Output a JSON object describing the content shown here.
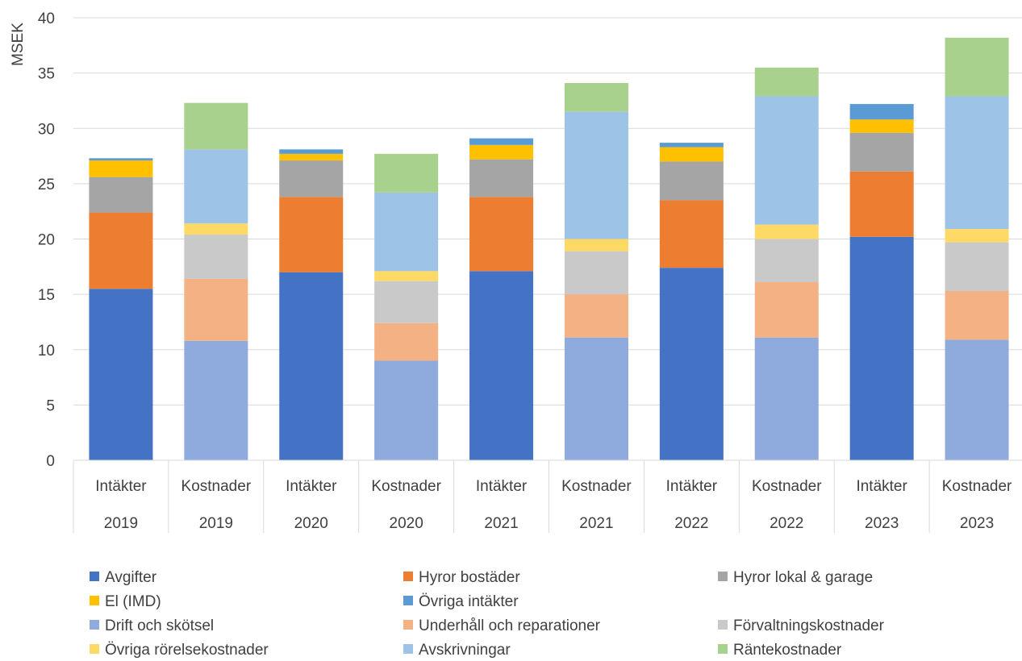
{
  "chart_data": {
    "type": "bar",
    "stacked": true,
    "ylabel": "MSEK",
    "ylim": [
      0,
      40
    ],
    "yticks": [
      0,
      5,
      10,
      15,
      20,
      25,
      30,
      35,
      40
    ],
    "grid": true,
    "legend_position": "bottom",
    "categories": [
      {
        "group": "Intäkter",
        "year": "2019"
      },
      {
        "group": "Kostnader",
        "year": "2019"
      },
      {
        "group": "Intäkter",
        "year": "2020"
      },
      {
        "group": "Kostnader",
        "year": "2020"
      },
      {
        "group": "Intäkter",
        "year": "2021"
      },
      {
        "group": "Kostnader",
        "year": "2021"
      },
      {
        "group": "Intäkter",
        "year": "2022"
      },
      {
        "group": "Kostnader",
        "year": "2022"
      },
      {
        "group": "Intäkter",
        "year": "2023"
      },
      {
        "group": "Kostnader",
        "year": "2023"
      }
    ],
    "series": [
      {
        "name": "Avgifter",
        "color": "#4472C4",
        "values": [
          15.5,
          0,
          17.0,
          0,
          17.1,
          0,
          17.4,
          0,
          20.2,
          0
        ]
      },
      {
        "name": "Hyror bostäder",
        "color": "#ED7D31",
        "values": [
          6.9,
          0,
          6.8,
          0,
          6.7,
          0,
          6.1,
          0,
          5.9,
          0
        ]
      },
      {
        "name": "Hyror lokal & garage",
        "color": "#A5A5A5",
        "values": [
          3.2,
          0,
          3.3,
          0,
          3.4,
          0,
          3.5,
          0,
          3.5,
          0
        ]
      },
      {
        "name": "El (IMD)",
        "color": "#FFC000",
        "values": [
          1.5,
          0,
          0.6,
          0,
          1.3,
          0,
          1.3,
          0,
          1.2,
          0
        ]
      },
      {
        "name": "Övriga intäkter",
        "color": "#5B9BD5",
        "values": [
          0.2,
          0,
          0.4,
          0,
          0.6,
          0,
          0.4,
          0,
          1.4,
          0
        ]
      },
      {
        "name": "Drift och skötsel",
        "color": "#8FAADC",
        "values": [
          0,
          10.8,
          0,
          9.0,
          0,
          11.1,
          0,
          11.1,
          0,
          10.9
        ]
      },
      {
        "name": "Underhåll och reparationer",
        "color": "#F4B183",
        "values": [
          0,
          5.6,
          0,
          3.4,
          0,
          3.9,
          0,
          5.0,
          0,
          4.4
        ]
      },
      {
        "name": "Förvaltningskostnader",
        "color": "#C9C9C9",
        "values": [
          0,
          4.0,
          0,
          3.8,
          0,
          3.9,
          0,
          3.9,
          0,
          4.4
        ]
      },
      {
        "name": "Övriga rörelsekostnader",
        "color": "#FFD966",
        "values": [
          0,
          1.0,
          0,
          0.9,
          0,
          1.1,
          0,
          1.3,
          0,
          1.2
        ]
      },
      {
        "name": "Avskrivningar",
        "color": "#9DC3E6",
        "values": [
          0,
          6.7,
          0,
          7.1,
          0,
          11.5,
          0,
          11.6,
          0,
          12.0
        ]
      },
      {
        "name": "Räntekostnader",
        "color": "#A9D18E",
        "values": [
          0,
          4.2,
          0,
          3.5,
          0,
          2.6,
          0,
          2.6,
          0,
          5.3
        ]
      }
    ]
  }
}
